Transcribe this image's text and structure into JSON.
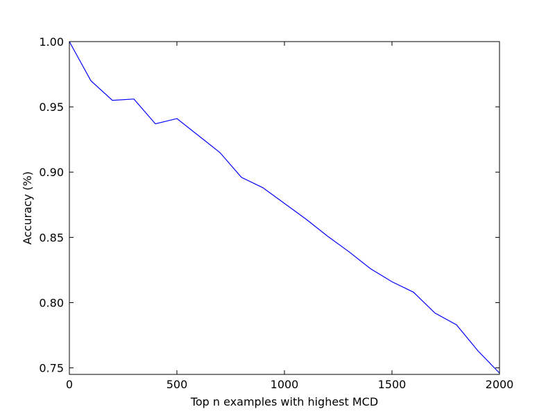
{
  "chart_data": {
    "type": "line",
    "xlabel": "Top n examples with highest MCD",
    "ylabel": "Accuracy (%)",
    "x": [
      0,
      100,
      200,
      300,
      400,
      500,
      600,
      700,
      800,
      900,
      1000,
      1100,
      1200,
      1300,
      1400,
      1500,
      1600,
      1700,
      1800,
      1900,
      2000
    ],
    "series": [
      {
        "color": "#0000ff",
        "values": [
          1.0,
          0.97,
          0.955,
          0.956,
          0.937,
          0.941,
          0.928,
          0.915,
          0.896,
          0.888,
          0.876,
          0.864,
          0.851,
          0.839,
          0.826,
          0.816,
          0.808,
          0.792,
          0.783,
          0.763,
          0.746
        ]
      }
    ],
    "xlim": [
      0,
      2000
    ],
    "xticks": [
      0,
      500,
      1000,
      1500,
      2000
    ],
    "ylim": [
      0.745,
      1.0
    ],
    "yticks": [
      {
        "value": 0.75,
        "label": "0.75"
      },
      {
        "value": 0.8,
        "label": "0.80"
      },
      {
        "value": 0.85,
        "label": "0.85"
      },
      {
        "value": 0.9,
        "label": "0.90"
      },
      {
        "value": 0.95,
        "label": "0.95"
      },
      {
        "value": 1.0,
        "label": "1.00"
      }
    ]
  }
}
